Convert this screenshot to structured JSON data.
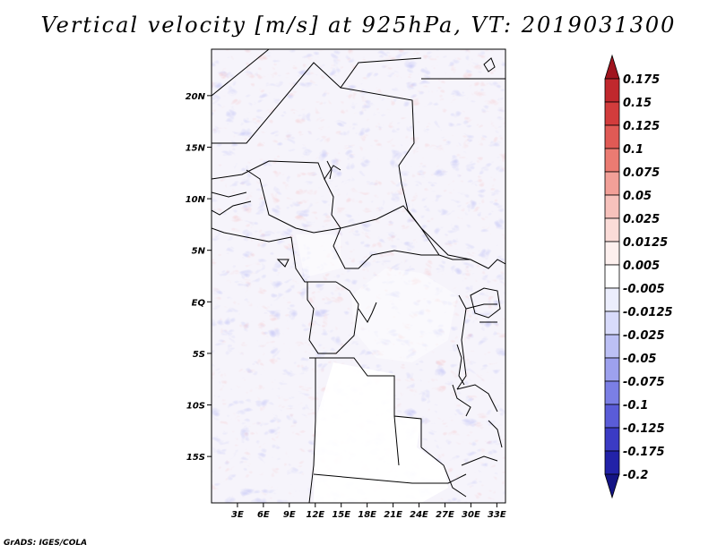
{
  "title": "Vertical velocity [m/s] at 925hPa, VT: 2019031300",
  "credit": "GrADS: IGES/COLA",
  "map": {
    "lon_range": [
      0,
      34
    ],
    "lat_range": [
      -19.5,
      24.5
    ],
    "lat_ticks": [
      {
        "value": 20,
        "label": "20N"
      },
      {
        "value": 15,
        "label": "15N"
      },
      {
        "value": 10,
        "label": "10N"
      },
      {
        "value": 5,
        "label": "5N"
      },
      {
        "value": 0,
        "label": "EQ"
      },
      {
        "value": -5,
        "label": "5S"
      },
      {
        "value": -10,
        "label": "10S"
      },
      {
        "value": -15,
        "label": "15S"
      }
    ],
    "lon_ticks": [
      {
        "value": 3,
        "label": "3E"
      },
      {
        "value": 6,
        "label": "6E"
      },
      {
        "value": 9,
        "label": "9E"
      },
      {
        "value": 12,
        "label": "12E"
      },
      {
        "value": 15,
        "label": "15E"
      },
      {
        "value": 18,
        "label": "18E"
      },
      {
        "value": 21,
        "label": "21E"
      },
      {
        "value": 24,
        "label": "24E"
      },
      {
        "value": 27,
        "label": "27E"
      },
      {
        "value": 30,
        "label": "30E"
      },
      {
        "value": 33,
        "label": "33E"
      }
    ]
  },
  "colorbar": {
    "levels": [
      "0.175",
      "0.15",
      "0.125",
      "0.1",
      "0.075",
      "0.05",
      "0.025",
      "0.0125",
      "0.005",
      "-0.005",
      "-0.0125",
      "-0.025",
      "-0.05",
      "-0.075",
      "-0.1",
      "-0.125",
      "-0.175",
      "-0.2"
    ],
    "colors": [
      "#a0141e",
      "#c0282d",
      "#d23c3c",
      "#e05a55",
      "#eb7b72",
      "#f2a098",
      "#f7c2bc",
      "#fbdcd8",
      "#fdf0ee",
      "#ffffff",
      "#eceefd",
      "#d8dbfb",
      "#bcc0f5",
      "#9da1ee",
      "#7b7fe5",
      "#5a5cd8",
      "#3b3bc4",
      "#2222a8",
      "#141485"
    ]
  }
}
